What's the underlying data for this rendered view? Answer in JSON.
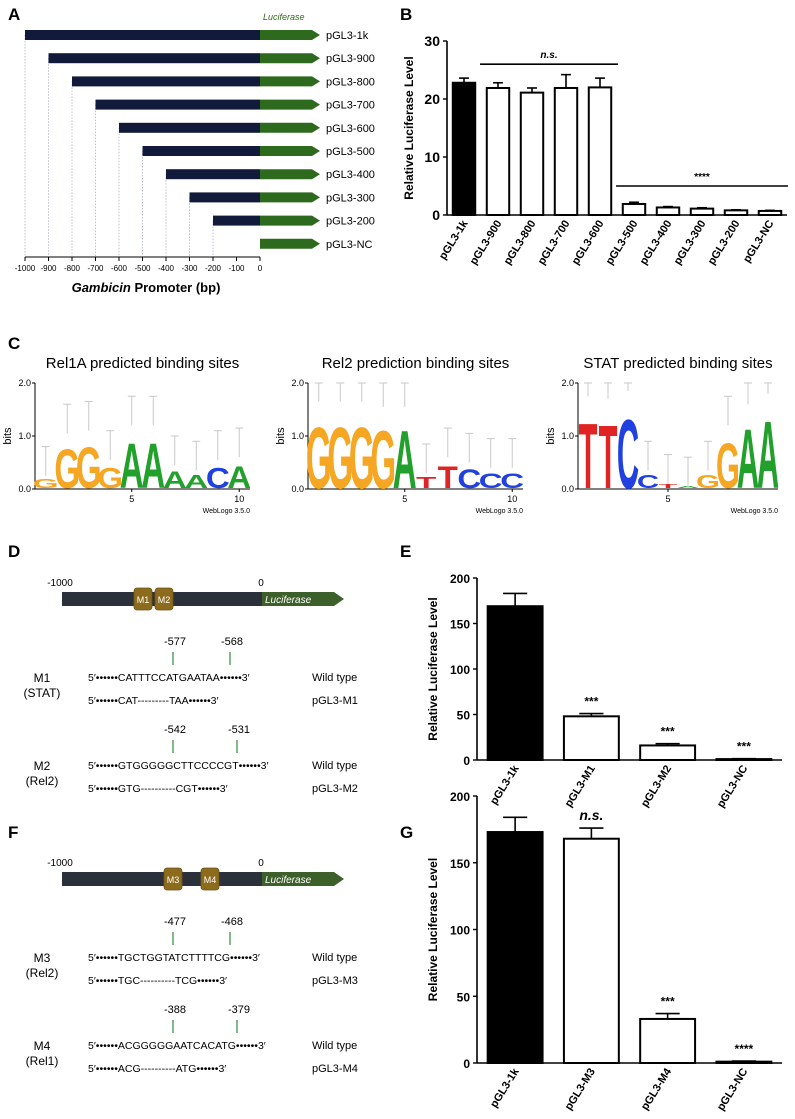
{
  "panels": {
    "A": "A",
    "B": "B",
    "C": "C",
    "D": "D",
    "E": "E",
    "F": "F",
    "G": "G"
  },
  "colors": {
    "navy": "#111a3a",
    "green": "#2e6a1e",
    "dark_bar": "#2b313b",
    "lightgreen": "#3d5f2a",
    "motif": "#8c6b1d"
  },
  "panelA": {
    "luciferase_label": "Luciferase",
    "constructs": [
      {
        "name": "pGL3-1k",
        "start": -1000
      },
      {
        "name": "pGL3-900",
        "start": -900
      },
      {
        "name": "pGL3-800",
        "start": -800
      },
      {
        "name": "pGL3-700",
        "start": -700
      },
      {
        "name": "pGL3-600",
        "start": -600
      },
      {
        "name": "pGL3-500",
        "start": -500
      },
      {
        "name": "pGL3-400",
        "start": -400
      },
      {
        "name": "pGL3-300",
        "start": -300
      },
      {
        "name": "pGL3-200",
        "start": -200
      },
      {
        "name": "pGL3-NC",
        "start": 0
      }
    ],
    "ticks": [
      "-1000",
      "-900",
      "-800",
      "-700",
      "-600",
      "-500",
      "-400",
      "-300",
      "-200",
      "-100",
      "0"
    ],
    "xlabel_italic": "Gambicin",
    "xlabel_rest": " Promoter (bp)"
  },
  "chart_data": [
    {
      "panel": "B",
      "type": "bar",
      "ylabel": "Relative Luciferase Level",
      "ylim": [
        0,
        30
      ],
      "yticks": [
        "0",
        "10",
        "20",
        "30"
      ],
      "categories": [
        "pGL3-1k",
        "pGL3-900",
        "pGL3-800",
        "pGL3-700",
        "pGL3-600",
        "pGL3-500",
        "pGL3-400",
        "pGL3-300",
        "pGL3-200",
        "pGL3-NC"
      ],
      "values": [
        22.8,
        21.9,
        21.1,
        21.9,
        22.0,
        1.9,
        1.3,
        1.1,
        0.8,
        0.7
      ],
      "errors": [
        0.8,
        0.9,
        0.8,
        2.3,
        1.6,
        0.3,
        0.15,
        0.15,
        0.1,
        0.1
      ],
      "fills": [
        "black",
        "white",
        "white",
        "white",
        "white",
        "white",
        "white",
        "white",
        "white",
        "white"
      ],
      "annotations": [
        {
          "text": "n.s.",
          "from": 1,
          "to": 4,
          "y": 26,
          "italic": true
        },
        {
          "text": "****",
          "from": 5,
          "to": 9,
          "y": 5,
          "italic": false
        }
      ]
    },
    {
      "panel": "E",
      "type": "bar",
      "ylabel": "Relative Luciferase Level",
      "ylim": [
        0,
        200
      ],
      "yticks": [
        "0",
        "50",
        "100",
        "150",
        "200"
      ],
      "categories": [
        "pGL3-1k",
        "pGL3-M1",
        "pGL3-M2",
        "pGL3-NC"
      ],
      "values": [
        169,
        48,
        16,
        1
      ],
      "errors": [
        14,
        3,
        2,
        0.5
      ],
      "fills": [
        "black",
        "white",
        "white",
        "white"
      ],
      "stars": [
        "",
        "***",
        "***",
        "***"
      ]
    },
    {
      "panel": "G",
      "type": "bar",
      "ylabel": "Relative Luciferase Level",
      "ylim": [
        0,
        200
      ],
      "yticks": [
        "0",
        "50",
        "100",
        "150",
        "200"
      ],
      "categories": [
        "pGL3-1k",
        "pGL3-M3",
        "pGL3-M4",
        "pGL3-NC"
      ],
      "values": [
        173,
        168,
        33,
        1
      ],
      "errors": [
        11,
        8,
        4,
        0.5
      ],
      "fills": [
        "black",
        "white",
        "white",
        "white"
      ],
      "stars": [
        "",
        "n.s.",
        "***",
        "****"
      ]
    }
  ],
  "logos": [
    {
      "title": "Rel1A predicted binding sites",
      "ylabel": "bits",
      "yticks": [
        "0.0",
        "1.0",
        "2.0"
      ],
      "xticks": [
        "5",
        "10"
      ],
      "credit": "WebLogo 3.5.0",
      "columns": [
        [
          "G",
          0.25
        ],
        [
          "G",
          1.05
        ],
        [
          "G",
          1.1
        ],
        [
          "G",
          0.55
        ],
        [
          "A",
          1.2
        ],
        [
          "A",
          1.2
        ],
        [
          "A",
          0.45
        ],
        [
          "A",
          0.35
        ],
        [
          "C",
          0.55
        ],
        [
          "A",
          0.6
        ]
      ]
    },
    {
      "title": "Rel2 prediction binding sites",
      "ylabel": "bits",
      "yticks": [
        "0.0",
        "1.0",
        "2.0"
      ],
      "xticks": [
        "5",
        "10"
      ],
      "credit": "WebLogo 3.5.0",
      "columns": [
        [
          "G",
          1.65
        ],
        [
          "G",
          1.65
        ],
        [
          "G",
          1.65
        ],
        [
          "G",
          1.55
        ],
        [
          "A",
          1.55
        ],
        [
          "T",
          0.3
        ],
        [
          "T",
          0.6
        ],
        [
          "C",
          0.5
        ],
        [
          "C",
          0.4
        ],
        [
          "C",
          0.4
        ]
      ]
    },
    {
      "title": "STAT predicted binding sites",
      "ylabel": "bits",
      "yticks": [
        "0.0",
        "1.0",
        "2.0"
      ],
      "xticks": [
        "5"
      ],
      "credit": "WebLogo 3.5.0",
      "columns": [
        [
          "T",
          1.75
        ],
        [
          "T",
          1.7
        ],
        [
          "C",
          1.85
        ],
        [
          "C",
          0.35
        ],
        [
          "T",
          0.1
        ],
        [
          "A",
          0.05
        ],
        [
          "G",
          0.35
        ],
        [
          "G",
          1.2
        ],
        [
          "A",
          1.6
        ],
        [
          "A",
          1.8
        ]
      ]
    }
  ],
  "panelD": {
    "left_pos": "-1000",
    "right_pos": "0",
    "luciferase": "Luciferase",
    "motifs": [
      "M1",
      "M2"
    ],
    "mut1": {
      "name": "M1",
      "tf": "(STAT)",
      "pos1": "-577",
      "pos2": "-568",
      "wt": "5′••••••CATTTCCATGAATAA••••••3′",
      "wt_label": "Wild type",
      "mt": "5′••••••CAT---------TAA••••••3′",
      "mt_label": "pGL3-M1"
    },
    "mut2": {
      "name": "M2",
      "tf": "(Rel2)",
      "pos1": "-542",
      "pos2": "-531",
      "wt": "5′••••••GTGGGGGCTTCCCCGT••••••3′",
      "wt_label": "Wild type",
      "mt": "5′••••••GTG----------CGT••••••3′",
      "mt_label": "pGL3-M2"
    }
  },
  "panelF": {
    "left_pos": "-1000",
    "right_pos": "0",
    "luciferase": "Luciferase",
    "motifs": [
      "M3",
      "M4"
    ],
    "mut1": {
      "name": "M3",
      "tf": "(Rel2)",
      "pos1": "-477",
      "pos2": "-468",
      "wt": "5′••••••TGCTGGTATCTTTTCG••••••3′",
      "wt_label": "Wild type",
      "mt": "5′••••••TGC----------TCG••••••3′",
      "mt_label": "pGL3-M3"
    },
    "mut2": {
      "name": "M4",
      "tf": "(Rel1)",
      "pos1": "-388",
      "pos2": "-379",
      "wt": "5′••••••ACGGGGGAATCACATG••••••3′",
      "wt_label": "Wild type",
      "mt": "5′••••••ACG----------ATG••••••3′",
      "mt_label": "pGL3-M4"
    }
  }
}
